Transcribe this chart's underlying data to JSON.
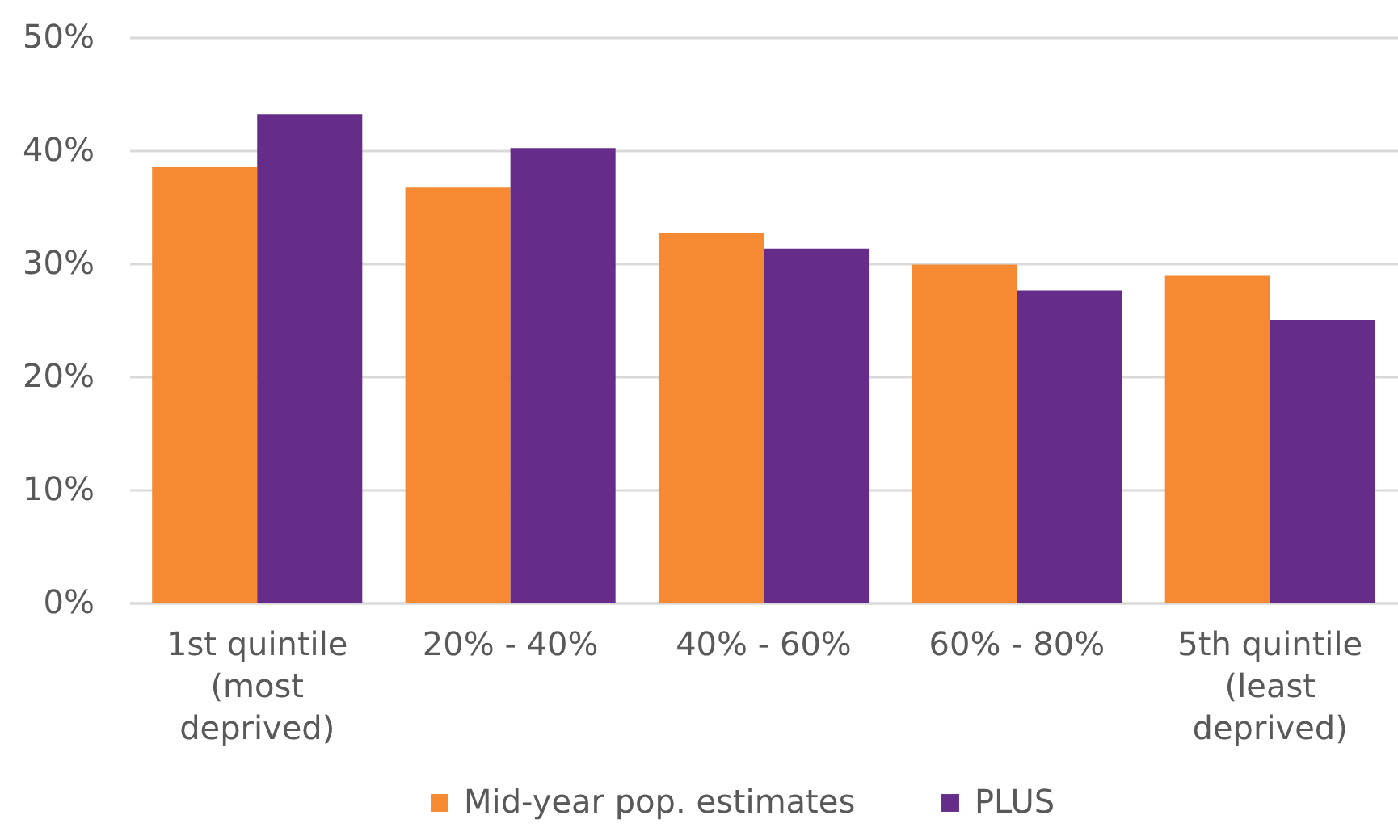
{
  "chart_data": {
    "type": "bar",
    "categories": [
      "1st quintile (most deprived)",
      "20% - 40%",
      "40% - 60%",
      "60% - 80%",
      "5th quintile (least deprived)"
    ],
    "series": [
      {
        "name": "Mid-year pop. estimates",
        "color": "#f58a33",
        "values": [
          38.5,
          36.7,
          32.7,
          29.9,
          28.9
        ]
      },
      {
        "name": "PLUS",
        "color": "#652d89",
        "values": [
          43.2,
          40.2,
          31.3,
          27.6,
          25.0
        ]
      }
    ],
    "ylim": [
      0,
      50
    ],
    "yticks": [
      {
        "value": 0,
        "label": "0%"
      },
      {
        "value": 10,
        "label": "10%"
      },
      {
        "value": 20,
        "label": "20%"
      },
      {
        "value": 30,
        "label": "30%"
      },
      {
        "value": 40,
        "label": "40%"
      },
      {
        "value": 50,
        "label": "50%"
      }
    ],
    "grid": "y",
    "legend": "bottom"
  }
}
